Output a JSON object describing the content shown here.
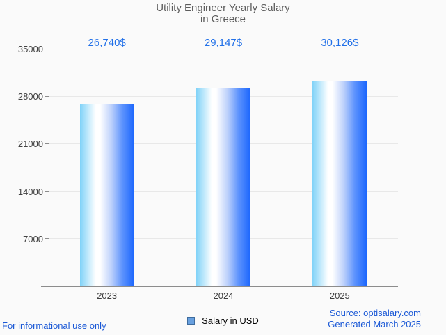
{
  "title": {
    "line1": "Utility Engineer Yearly Salary",
    "line2": "in Greece"
  },
  "chart_data": {
    "type": "bar",
    "categories": [
      "2023",
      "2024",
      "2025"
    ],
    "values": [
      26740,
      29147,
      30126
    ],
    "value_labels": [
      "26,740$",
      "29,147$",
      "30,126$"
    ],
    "series_name": "Salary in USD",
    "title": "Utility Engineer Yearly Salary in Greece",
    "xlabel": "",
    "ylabel": "",
    "ylim": [
      0,
      35000
    ],
    "ytick_interval": 7000,
    "yticks": [
      "7000",
      "14000",
      "21000",
      "28000",
      "35000"
    ],
    "grid": "horizontal",
    "legend_position": "bottom-center"
  },
  "legend": {
    "marker": "blue-square",
    "label": "Salary in USD"
  },
  "footer": {
    "left": "For informational use only",
    "source": "Source: optisalary.com",
    "generated": "Generated March 2025"
  },
  "colors": {
    "background": "#fafafa",
    "title_text": "#5c5c5c",
    "axis_line": "#8c8c8c",
    "gridline": "#e8e8e8",
    "axis_label_text": "#404040",
    "value_label_text": "#2170e8",
    "footer_text": "#1a58d6",
    "legend_marker_fill": "#68a0df",
    "legend_marker_border": "#3e6c9e",
    "bar_gradient_left": "#7fd2f8",
    "bar_gradient_middle": "#ffffff",
    "bar_gradient_right": "#1b66fd"
  }
}
